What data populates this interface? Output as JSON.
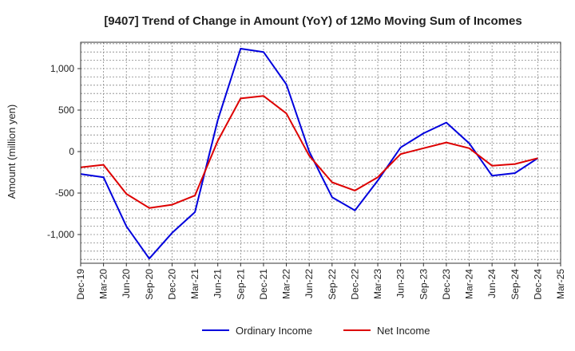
{
  "chart_data": {
    "type": "line",
    "title": "[9407]  Trend of Change in Amount (YoY) of 12Mo Moving Sum of Incomes",
    "xlabel": "",
    "ylabel": "Amount (million yen)",
    "ylim": [
      -1350,
      1300
    ],
    "yticks": [
      1000,
      500,
      0,
      -500,
      -1000
    ],
    "ytick_labels": [
      "1,000",
      "500",
      "0",
      "-500",
      "-1,000"
    ],
    "grid": true,
    "legend_position": "bottom-center",
    "categories": [
      "Dec-19",
      "Mar-20",
      "Jun-20",
      "Sep-20",
      "Dec-20",
      "Mar-21",
      "Jun-21",
      "Sep-21",
      "Dec-21",
      "Mar-22",
      "Jun-22",
      "Sep-22",
      "Dec-22",
      "Mar-23",
      "Jun-23",
      "Sep-23",
      "Dec-23",
      "Mar-24",
      "Jun-24",
      "Sep-24",
      "Dec-24",
      "Mar-25"
    ],
    "series": [
      {
        "name": "Ordinary Income",
        "color": "#0000dd",
        "values": [
          -270,
          -310,
          -900,
          -1290,
          -980,
          -730,
          380,
          1240,
          1200,
          810,
          0,
          -550,
          -710,
          -350,
          50,
          220,
          350,
          100,
          -290,
          -260,
          -80,
          null
        ]
      },
      {
        "name": "Net Income",
        "color": "#dd0000",
        "values": [
          -190,
          -160,
          -510,
          -680,
          -640,
          -530,
          130,
          640,
          670,
          460,
          -50,
          -370,
          -470,
          -310,
          -30,
          40,
          110,
          40,
          -170,
          -150,
          -80,
          null
        ]
      }
    ]
  }
}
